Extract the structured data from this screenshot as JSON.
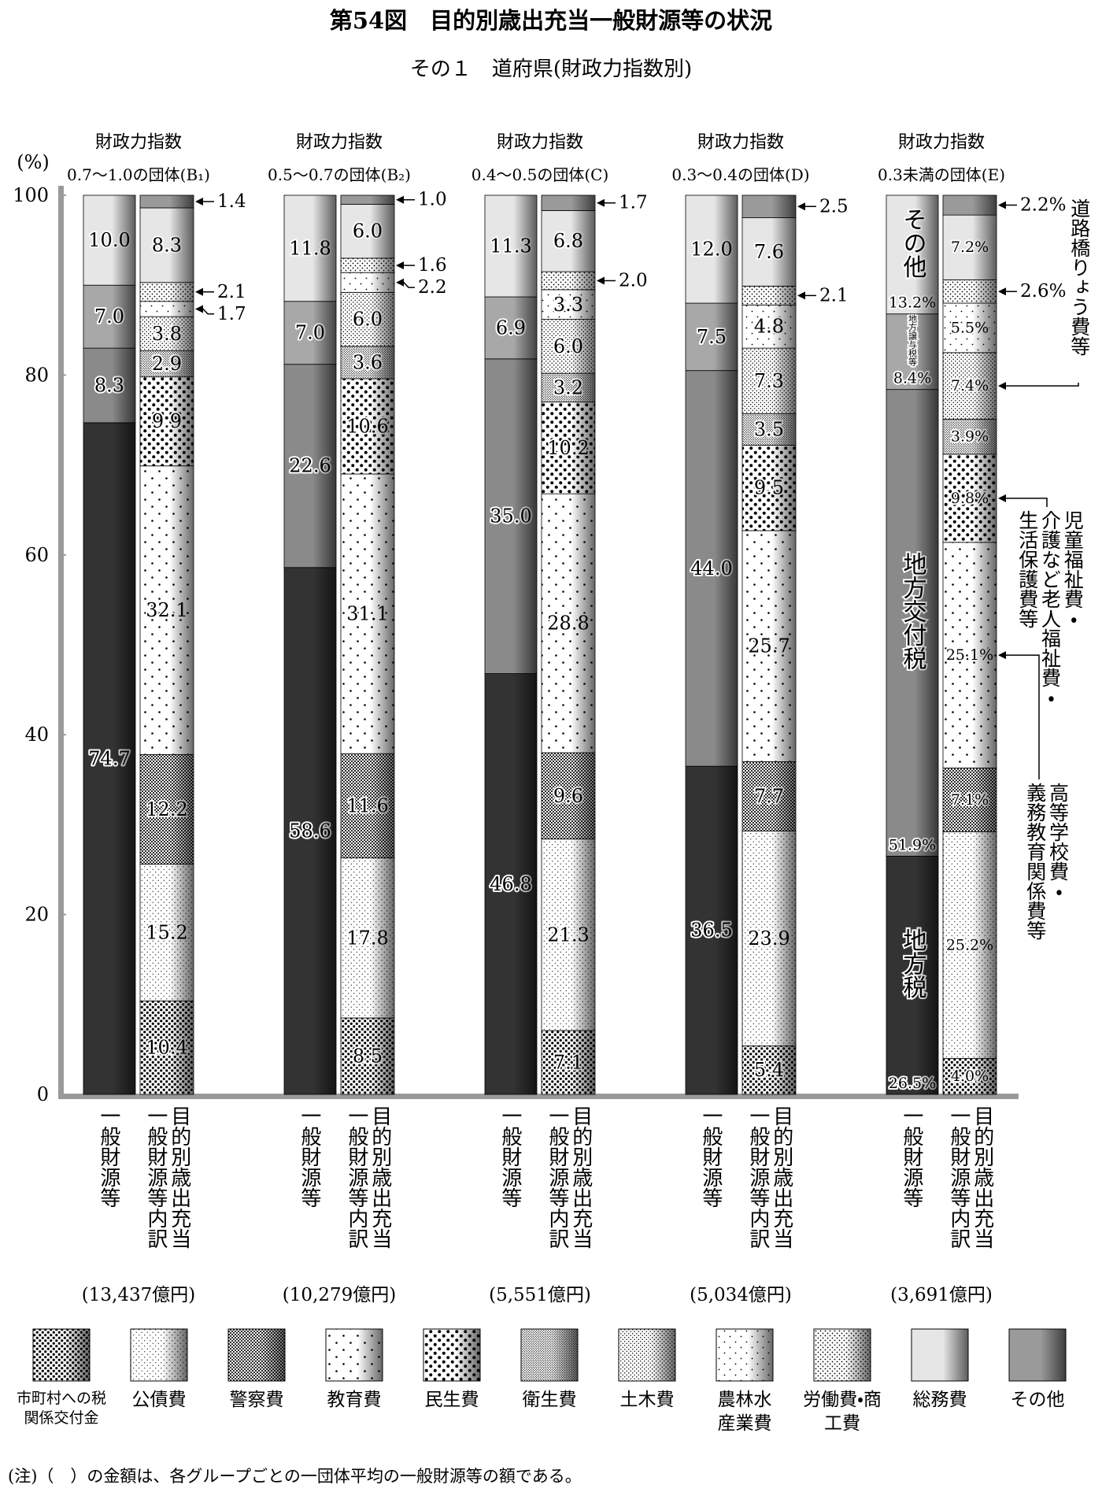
{
  "chart_data": {
    "type": "stacked_bar_pairs",
    "title": "第54図　目的別歳出充当一般財源等の状況",
    "subtitle": "その１　道府県(財政力指数別)",
    "y_unit": "(%)",
    "ylim": [
      0,
      100
    ],
    "yticks": [
      0,
      20,
      40,
      60,
      80,
      100
    ],
    "groups": [
      {
        "label": "財政力指数",
        "sublabel": "0.7～1.0の団体(B₁)",
        "total": "(13,437億円)"
      },
      {
        "label": "財政力指数",
        "sublabel": "0.5～0.7の団体(B₂)",
        "total": "(10,279億円)"
      },
      {
        "label": "財政力指数",
        "sublabel": "0.4～0.5の団体(C)",
        "total": "(5,551億円)"
      },
      {
        "label": "財政力指数",
        "sublabel": "0.3～0.4の団体(D)",
        "total": "(5,034億円)"
      },
      {
        "label": "財政力指数",
        "sublabel": "0.3未満の団体(E)",
        "total": "(3,691億円)"
      }
    ],
    "bar_labels": [
      "一般財源等",
      "目的別歳出充当一般財源等内訳"
    ],
    "left_series": [
      {
        "name": "地方税",
        "color": "#333333",
        "values": [
          74.7,
          58.6,
          46.8,
          36.5,
          26.5
        ],
        "value_labels": [
          "74.7",
          "58.6",
          "46.8",
          "36.5",
          "26.5%"
        ]
      },
      {
        "name": "地方交付税",
        "color": "#8a8a8a",
        "values": [
          8.3,
          22.6,
          35.0,
          44.0,
          51.9
        ],
        "value_labels": [
          "8.3",
          "22.6",
          "35.0",
          "44.0",
          "51.9%"
        ]
      },
      {
        "name": "地方譲与税等",
        "color": "#a8a8a8",
        "values": [
          7.0,
          7.0,
          6.9,
          7.5,
          8.4
        ],
        "value_labels": [
          "7.0",
          "7.0",
          "6.9",
          "7.5",
          "8.4%"
        ]
      },
      {
        "name": "その他",
        "color": "#e6e6e6",
        "values": [
          10.0,
          11.8,
          11.3,
          12.0,
          13.2
        ],
        "value_labels": [
          "10.0",
          "11.8",
          "11.3",
          "12.0",
          "13.2%"
        ]
      }
    ],
    "right_series": [
      {
        "name": "市町村への税関係交付金",
        "color": "#ffffff",
        "pattern": "coarse-dots",
        "values": [
          10.4,
          8.5,
          7.1,
          5.4,
          4.0
        ],
        "value_labels": [
          "10.4",
          "8.5",
          "7.1",
          "5.4",
          "4.0%"
        ]
      },
      {
        "name": "公債費",
        "color": "#ffffff",
        "pattern": "fine-sparse-dots",
        "values": [
          15.2,
          17.8,
          21.3,
          23.9,
          25.2
        ],
        "value_labels": [
          "15.2",
          "17.8",
          "21.3",
          "23.9",
          "25.2%"
        ]
      },
      {
        "name": "警察費",
        "color": "#ffffff",
        "pattern": "dense-dots",
        "values": [
          12.2,
          11.6,
          9.6,
          7.7,
          7.1
        ],
        "value_labels": [
          "12.2",
          "11.6",
          "9.6",
          "7.7",
          "7.1%"
        ]
      },
      {
        "name": "教育費",
        "color": "#ffffff",
        "pattern": "sparse-dots",
        "values": [
          32.1,
          31.1,
          28.8,
          25.7,
          25.1
        ],
        "value_labels": [
          "32.1",
          "31.1",
          "28.8",
          "25.7",
          "25.1%"
        ]
      },
      {
        "name": "民生費",
        "color": "#ffffff",
        "pattern": "large-dots",
        "values": [
          9.9,
          10.6,
          10.2,
          9.5,
          9.8
        ],
        "value_labels": [
          "9.9",
          "10.6",
          "10.2",
          "9.5",
          "9.8%"
        ]
      },
      {
        "name": "衛生費",
        "color": "#ffffff",
        "pattern": "very-fine-dots",
        "values": [
          2.9,
          3.6,
          3.2,
          3.5,
          3.9
        ],
        "value_labels": [
          "2.9",
          "3.6",
          "3.2",
          "3.5",
          "3.9%"
        ]
      },
      {
        "name": "土木費",
        "color": "#ffffff",
        "pattern": "fine-dots",
        "values": [
          3.8,
          6.0,
          6.0,
          7.3,
          7.4
        ],
        "value_labels": [
          "3.8",
          "6.0",
          "6.0",
          "7.3",
          "7.4%"
        ]
      },
      {
        "name": "農林水産業費",
        "color": "#ffffff",
        "pattern": "scattered-dots",
        "values": [
          1.7,
          2.2,
          3.3,
          4.8,
          5.5
        ],
        "value_labels": [
          "1.7",
          "2.2",
          "3.3",
          "4.8",
          "5.5%"
        ]
      },
      {
        "name": "労働費・商工費",
        "color": "#ffffff",
        "pattern": "grid-dots",
        "values": [
          2.1,
          1.6,
          2.0,
          2.1,
          2.6
        ],
        "value_labels": [
          "2.1",
          "1.6",
          "2.0",
          "2.1",
          "2.6%"
        ]
      },
      {
        "name": "総務費",
        "color": "#e6e6e6",
        "values": [
          8.3,
          6.0,
          6.8,
          7.6,
          7.2
        ],
        "value_labels": [
          "8.3",
          "6.0",
          "6.8",
          "7.6",
          "7.2%"
        ]
      },
      {
        "name": "その他",
        "color": "#9a9a9a",
        "values": [
          1.4,
          1.0,
          1.7,
          2.5,
          2.2
        ],
        "value_labels": [
          "1.4",
          "1.0",
          "1.7",
          "2.5",
          "2.2%"
        ]
      }
    ],
    "annotations": [
      "道路橋りょう費等",
      "児童福祉費・介護など老人福祉費・生活保護費等",
      "高等学校費・義務教育関係費等"
    ],
    "note": "(注)（　）の金額は、各グループごとの一団体平均の一般財源等の額である。"
  }
}
